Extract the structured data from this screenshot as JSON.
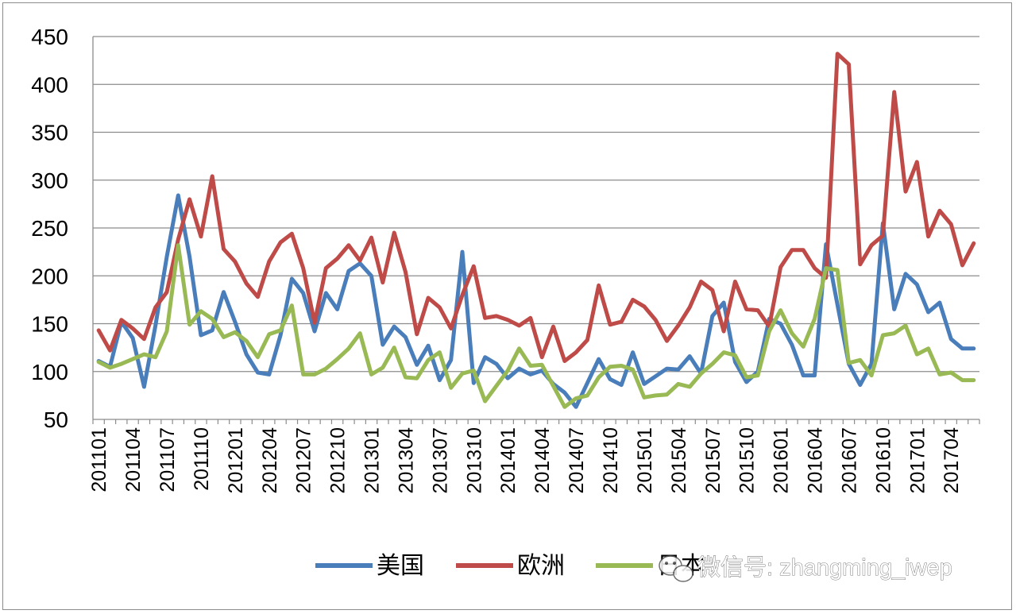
{
  "chart_data": {
    "type": "line",
    "title": "",
    "xlabel": "",
    "ylabel": "",
    "ylim": [
      50,
      450
    ],
    "yticks": [
      50,
      100,
      150,
      200,
      250,
      300,
      350,
      400,
      450
    ],
    "grid": true,
    "legend_position": "bottom",
    "x_tick_labels": [
      "201101",
      "201104",
      "201107",
      "201110",
      "201201",
      "201204",
      "201207",
      "201210",
      "201301",
      "201304",
      "201307",
      "201310",
      "201401",
      "201404",
      "201407",
      "201410",
      "201501",
      "201504",
      "201507",
      "201510",
      "201601",
      "201604",
      "201607",
      "201610",
      "201701",
      "201704"
    ],
    "x": [
      "201101",
      "201102",
      "201103",
      "201104",
      "201105",
      "201106",
      "201107",
      "201108",
      "201109",
      "201110",
      "201111",
      "201112",
      "201201",
      "201202",
      "201203",
      "201204",
      "201205",
      "201206",
      "201207",
      "201208",
      "201209",
      "201210",
      "201211",
      "201212",
      "201301",
      "201302",
      "201303",
      "201304",
      "201305",
      "201306",
      "201307",
      "201308",
      "201309",
      "201310",
      "201311",
      "201312",
      "201401",
      "201402",
      "201403",
      "201404",
      "201405",
      "201406",
      "201407",
      "201408",
      "201409",
      "201410",
      "201411",
      "201412",
      "201501",
      "201502",
      "201503",
      "201504",
      "201505",
      "201506",
      "201507",
      "201508",
      "201509",
      "201510",
      "201511",
      "201512",
      "201601",
      "201602",
      "201603",
      "201604",
      "201605",
      "201606",
      "201607",
      "201608",
      "201609",
      "201610",
      "201611",
      "201612",
      "201701",
      "201702",
      "201703",
      "201704",
      "201705",
      "201706"
    ],
    "series": [
      {
        "name": "美国",
        "color": "#4a7ebb",
        "values": [
          111,
          105,
          152,
          135,
          84,
          148,
          220,
          284,
          220,
          138,
          143,
          183,
          152,
          118,
          99,
          97,
          138,
          197,
          182,
          142,
          182,
          165,
          205,
          213,
          200,
          128,
          147,
          136,
          107,
          127,
          91,
          112,
          225,
          88,
          115,
          108,
          93,
          103,
          97,
          101,
          87,
          78,
          63,
          88,
          113,
          92,
          86,
          120,
          87,
          95,
          103,
          102,
          116,
          98,
          158,
          172,
          110,
          89,
          100,
          155,
          150,
          128,
          96,
          96,
          233,
          170,
          108,
          86,
          108,
          255,
          165,
          202,
          191,
          162,
          172,
          134,
          124,
          124
        ]
      },
      {
        "name": "欧洲",
        "color": "#be4b48",
        "values": [
          143,
          122,
          154,
          145,
          134,
          167,
          183,
          238,
          280,
          241,
          304,
          228,
          215,
          192,
          178,
          215,
          235,
          244,
          208,
          151,
          208,
          218,
          232,
          216,
          240,
          193,
          245,
          204,
          139,
          177,
          167,
          145,
          180,
          210,
          156,
          158,
          154,
          148,
          156,
          115,
          147,
          111,
          120,
          133,
          190,
          149,
          152,
          175,
          168,
          154,
          132,
          148,
          167,
          194,
          185,
          142,
          194,
          165,
          164,
          147,
          209,
          227,
          227,
          208,
          198,
          432,
          421,
          212,
          232,
          242,
          392,
          288,
          319,
          241,
          268,
          254,
          211,
          234
        ]
      },
      {
        "name": "日本",
        "color": "#98b954",
        "values": [
          110,
          104,
          108,
          113,
          118,
          115,
          142,
          232,
          149,
          163,
          155,
          136,
          141,
          132,
          115,
          139,
          143,
          169,
          97,
          97,
          103,
          113,
          124,
          140,
          97,
          104,
          125,
          94,
          93,
          112,
          120,
          83,
          98,
          101,
          69,
          85,
          101,
          124,
          106,
          107,
          85,
          63,
          72,
          75,
          94,
          105,
          106,
          102,
          73,
          75,
          76,
          87,
          84,
          98,
          108,
          120,
          117,
          94,
          96,
          142,
          164,
          140,
          126,
          155,
          208,
          206,
          109,
          112,
          96,
          138,
          140,
          148,
          118,
          124,
          97,
          99,
          91,
          91
        ]
      }
    ],
    "watermark": "微信号: zhangming_iwep"
  }
}
